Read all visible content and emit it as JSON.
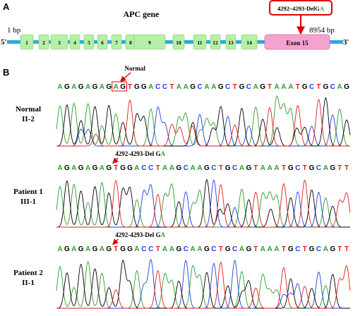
{
  "panel_a": {
    "letter": "A",
    "gene_title": "APC gene",
    "five_prime": "5'",
    "three_prime": "3'",
    "start_bp": "1 bp",
    "end_bp": "8954 bp",
    "exons": [
      "1",
      "2",
      "3",
      "4",
      "5",
      "6",
      "7",
      "8",
      "9",
      "10",
      "11",
      "12",
      "13",
      "14"
    ],
    "exon15": "Exon 15",
    "mutation_label_prefix": "4292–4293-Del",
    "mutation_label_bases": [
      "G",
      "A"
    ],
    "colors": {
      "backbone": "#2aa9e0",
      "exon": "#b6f0a6",
      "exon15": "#f4a3cf",
      "callout": "#e00000"
    }
  },
  "panel_b": {
    "letter": "B",
    "base_colors": {
      "A": "#2e9b2e",
      "G": "#000000",
      "C": "#1d3fe0",
      "T": "#e01e1e"
    },
    "tracks": [
      {
        "label_line1": "Normal",
        "label_line2": "II-2",
        "sequence": "AGAGAGAGAGTGGACCTAAGCAAGCTGCAGTAAATGCTGCAG",
        "annotation": "Normal",
        "annotation_bases": []
      },
      {
        "label_line1": "Patient 1",
        "label_line2": "III-1",
        "sequence": "AGAGAGAGTGGACCTAAGCAAGCTGCAGTAAATGCTGCAGTT",
        "annotation": "4292-4293-Del",
        "annotation_bases": [
          "G",
          "A"
        ]
      },
      {
        "label_line1": "Patient 2",
        "label_line2": "II-1",
        "sequence": "AGAGAGAGTGGACCTAAGCAAGCTGCAGTAAATGCTGCAGTT",
        "annotation": "4292-4293-Del",
        "annotation_bases": [
          "G",
          "A"
        ]
      }
    ]
  }
}
